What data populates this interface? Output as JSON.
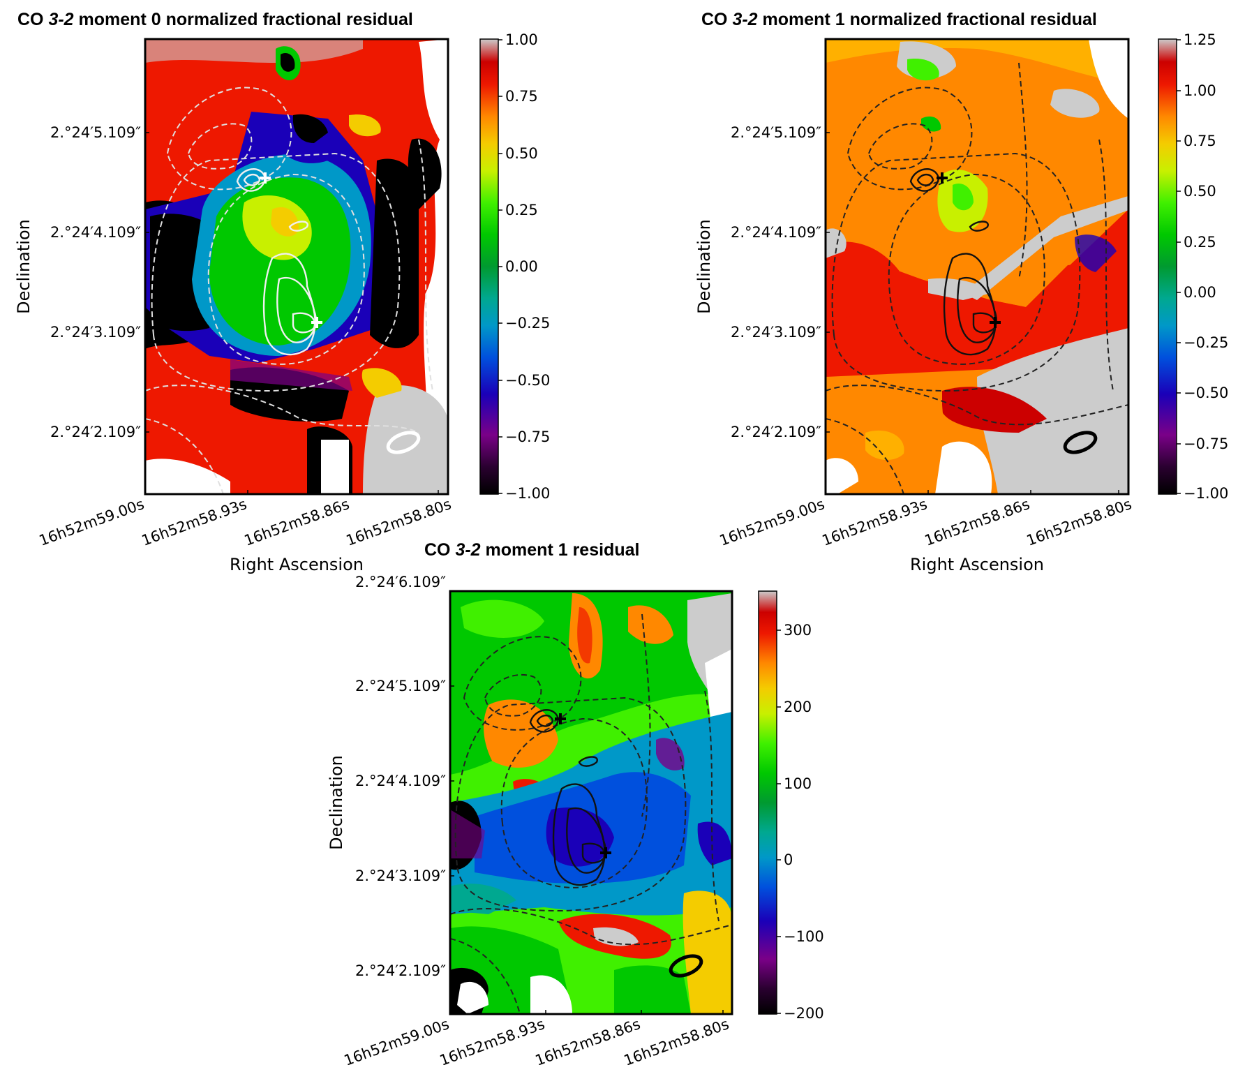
{
  "chart_data": [
    {
      "type": "heatmap",
      "title": "CO 3-2 moment 0 normalized fractional residual",
      "title_parts": [
        "CO ",
        "3-2",
        " moment 0 normalized fractional residual"
      ],
      "xlabel": "Right Ascension",
      "ylabel": "Declination",
      "x_ticks": [
        "16h52m59.00s",
        "16h52m58.93s",
        "16h52m58.86s",
        "16h52m58.80s"
      ],
      "y_ticks": [
        "2.°24′5.109″",
        "2.°24′4.109″",
        "2.°24′3.109″",
        "2.°24′2.109″"
      ],
      "colorbar": {
        "min": -1.0,
        "max": 1.0,
        "colormap": "nipy_spectral",
        "ticks": [
          "1.00",
          "0.75",
          "0.50",
          "0.25",
          "0.00",
          "−0.25",
          "−0.50",
          "−0.75",
          "−1.00"
        ]
      },
      "contour_color": "#ffffff",
      "markers": [
        "+",
        "+"
      ],
      "beam": "ellipse"
    },
    {
      "type": "heatmap",
      "title": "CO 3-2 moment 1 normalized fractional residual",
      "title_parts": [
        "CO ",
        "3-2",
        " moment 1 normalized fractional residual"
      ],
      "xlabel": "Right Ascension",
      "ylabel": "Declination",
      "x_ticks": [
        "16h52m59.00s",
        "16h52m58.93s",
        "16h52m58.86s",
        "16h52m58.80s"
      ],
      "y_ticks": [
        "2.°24′5.109″",
        "2.°24′4.109″",
        "2.°24′3.109″",
        "2.°24′2.109″"
      ],
      "colorbar": {
        "min": -1.0,
        "max": 1.25,
        "colormap": "nipy_spectral",
        "ticks": [
          "1.25",
          "1.00",
          "0.75",
          "0.50",
          "0.25",
          "0.00",
          "−0.25",
          "−0.50",
          "−0.75",
          "−1.00"
        ]
      },
      "contour_color": "#000000",
      "markers": [
        "+",
        "+"
      ],
      "beam": "ellipse"
    },
    {
      "type": "heatmap",
      "title": "CO 3-2 moment 1 residual",
      "title_parts": [
        "CO ",
        "3-2",
        " moment 1 residual"
      ],
      "xlabel": "",
      "ylabel": "Declination",
      "x_ticks": [
        "16h52m59.00s",
        "16h52m58.93s",
        "16h52m58.86s",
        "16h52m58.80s"
      ],
      "y_ticks": [
        "2.°24′6.109″",
        "2.°24′5.109″",
        "2.°24′4.109″",
        "2.°24′3.109″",
        "2.°24′2.109″"
      ],
      "colorbar": {
        "min": -200,
        "max": 350,
        "colormap": "nipy_spectral",
        "ticks": [
          "300",
          "200",
          "100",
          "0",
          "−100",
          "−200"
        ]
      },
      "contour_color": "#000000",
      "markers": [
        "+",
        "+"
      ],
      "beam": "ellipse"
    }
  ]
}
